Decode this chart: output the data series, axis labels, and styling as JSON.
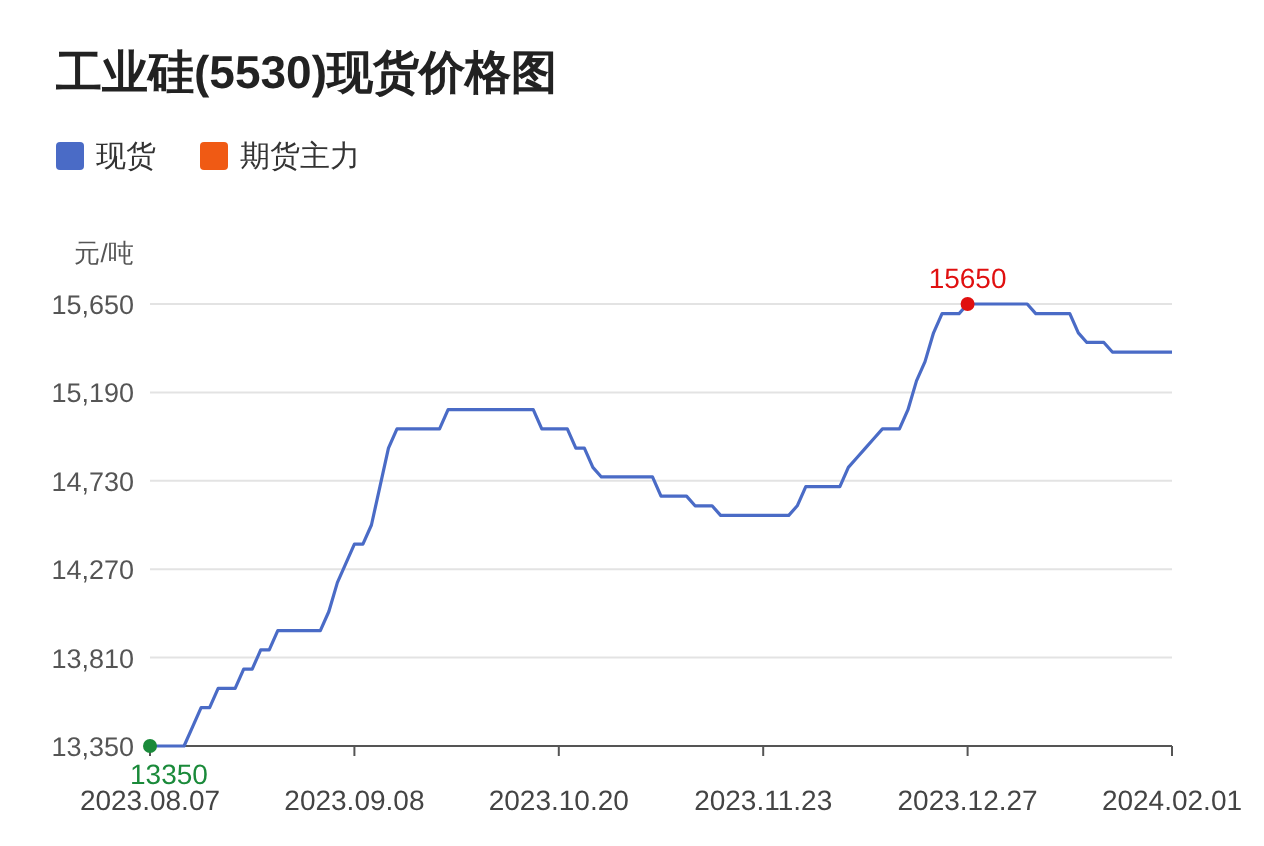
{
  "chart_data": {
    "type": "line",
    "title": "工业硅(5530)现货价格图",
    "ylabel": "元/吨",
    "categories": [
      "2023.08.07",
      null,
      null,
      null,
      null,
      null,
      null,
      null,
      null,
      null,
      null,
      null,
      null,
      null,
      null,
      null,
      null,
      null,
      null,
      null,
      null,
      null,
      null,
      null,
      "2023.09.08",
      null,
      null,
      null,
      null,
      null,
      null,
      null,
      null,
      null,
      null,
      null,
      null,
      null,
      null,
      null,
      null,
      null,
      null,
      null,
      null,
      null,
      null,
      null,
      "2023.10.20",
      null,
      null,
      null,
      null,
      null,
      null,
      null,
      null,
      null,
      null,
      null,
      null,
      null,
      null,
      null,
      null,
      null,
      null,
      null,
      null,
      null,
      null,
      null,
      "2023.11.23",
      null,
      null,
      null,
      null,
      null,
      null,
      null,
      null,
      null,
      null,
      null,
      null,
      null,
      null,
      null,
      null,
      null,
      null,
      null,
      null,
      null,
      null,
      null,
      "2023.12.27",
      null,
      null,
      null,
      null,
      null,
      null,
      null,
      null,
      null,
      null,
      null,
      null,
      null,
      null,
      null,
      null,
      null,
      null,
      null,
      null,
      null,
      null,
      null,
      "2024.02.01"
    ],
    "series": [
      {
        "name": "现货",
        "color": "#4a6bc6",
        "values": [
          13350,
          13350,
          13350,
          13350,
          13350,
          13450,
          13550,
          13550,
          13650,
          13650,
          13650,
          13750,
          13750,
          13850,
          13850,
          13950,
          13950,
          13950,
          13950,
          13950,
          13950,
          14050,
          14200,
          14300,
          14400,
          14400,
          14500,
          14700,
          14900,
          15000,
          15000,
          15000,
          15000,
          15000,
          15000,
          15100,
          15100,
          15100,
          15100,
          15100,
          15100,
          15100,
          15100,
          15100,
          15100,
          15100,
          15000,
          15000,
          15000,
          15000,
          14900,
          14900,
          14800,
          14750,
          14750,
          14750,
          14750,
          14750,
          14750,
          14750,
          14650,
          14650,
          14650,
          14650,
          14600,
          14600,
          14600,
          14550,
          14550,
          14550,
          14550,
          14550,
          14550,
          14550,
          14550,
          14550,
          14600,
          14700,
          14700,
          14700,
          14700,
          14700,
          14800,
          14850,
          14900,
          14950,
          15000,
          15000,
          15000,
          15100,
          15250,
          15350,
          15500,
          15600,
          15600,
          15600,
          15650,
          15650,
          15650,
          15650,
          15650,
          15650,
          15650,
          15650,
          15600,
          15600,
          15600,
          15600,
          15600,
          15500,
          15450,
          15450,
          15450,
          15400,
          15400,
          15400,
          15400,
          15400,
          15400,
          15400,
          15400
        ]
      },
      {
        "name": "期货主力",
        "color": "#f05a14",
        "values": [
          null,
          null,
          null,
          null,
          null,
          null,
          null,
          null,
          null,
          null,
          null,
          null,
          null,
          null,
          null,
          null,
          null,
          null,
          null,
          null,
          null,
          null,
          null,
          null,
          null,
          null,
          null,
          null,
          null,
          null,
          null,
          null,
          null,
          null,
          null,
          null,
          null,
          null,
          null,
          null,
          null,
          null,
          null,
          null,
          null,
          null,
          null,
          null,
          null,
          null,
          null,
          null,
          null,
          null,
          null,
          null,
          null,
          null,
          null,
          null,
          null,
          null,
          null,
          null,
          null,
          null,
          null,
          null,
          null,
          null,
          null,
          null,
          null,
          null,
          null,
          null,
          null,
          null,
          null,
          null,
          null,
          null,
          null,
          null,
          null,
          null,
          null,
          null,
          null,
          null,
          null,
          null,
          null,
          null,
          null,
          null,
          null,
          null,
          null,
          null,
          null,
          null,
          null,
          null,
          null,
          null,
          null,
          null,
          null,
          null,
          null,
          null,
          null,
          null,
          null,
          null,
          null,
          null,
          null,
          null,
          null
        ]
      }
    ],
    "ylim": [
      13350,
      15650
    ],
    "yticks": [
      {
        "value": 13350,
        "label": "13,350"
      },
      {
        "value": 13810,
        "label": "13,810"
      },
      {
        "value": 14270,
        "label": "14,270"
      },
      {
        "value": 14730,
        "label": "14,730"
      },
      {
        "value": 15190,
        "label": "15,190"
      },
      {
        "value": 15650,
        "label": "15,650"
      }
    ],
    "grid": "y",
    "legend": "top left",
    "annotations": [
      {
        "text": "13350",
        "x": "2023.08.07",
        "y": 13350
      },
      {
        "text": "15650",
        "x": "2023.12.27",
        "y": 15650
      }
    ]
  }
}
